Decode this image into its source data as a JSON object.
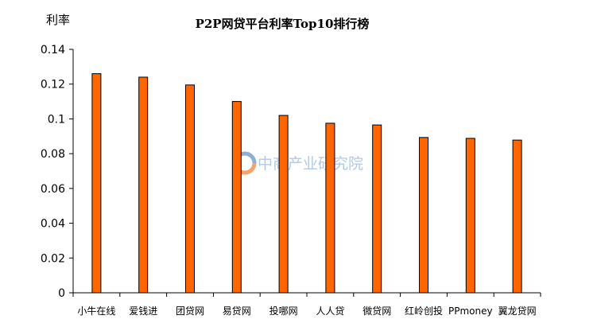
{
  "watermark": {
    "text": "中商产业研究院",
    "icon": "zhongshang-logo-icon"
  },
  "colors": {
    "bar": "#ff6600",
    "bar_stroke": "#000000",
    "axis": "#000000"
  },
  "chart_data": {
    "type": "bar",
    "title": "P2P网贷平台利率Top10排行榜",
    "xlabel": "",
    "ylabel": "利率",
    "ylim": [
      0,
      0.14
    ],
    "yticks": [
      0,
      0.02,
      0.04,
      0.06,
      0.08,
      0.1,
      0.12,
      0.14
    ],
    "ytick_labels": [
      "0",
      "0.02",
      "0.04",
      "0.06",
      "0.08",
      "0.1",
      "0.12",
      "0.14"
    ],
    "grid": false,
    "legend": "none",
    "categories": [
      "小牛在线",
      "爱钱进",
      "团贷网",
      "易贷网",
      "投哪网",
      "人人贷",
      "微贷网",
      "红岭创投",
      "PPmoney",
      "翼龙贷网"
    ],
    "values": [
      0.126,
      0.124,
      0.1195,
      0.11,
      0.102,
      0.0975,
      0.0965,
      0.0893,
      0.0888,
      0.0878
    ]
  }
}
